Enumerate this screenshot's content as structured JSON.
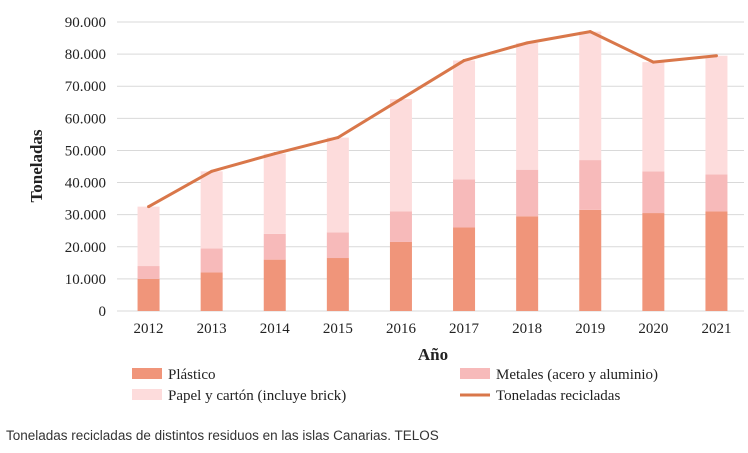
{
  "chart_data": {
    "type": "bar",
    "stacked": true,
    "categories": [
      "2012",
      "2013",
      "2014",
      "2015",
      "2016",
      "2017",
      "2018",
      "2019",
      "2020",
      "2021"
    ],
    "series": [
      {
        "name": "Plástico",
        "kind": "bar",
        "color": "#f0957a",
        "values": [
          10000,
          12000,
          16000,
          16500,
          21500,
          26000,
          29500,
          31500,
          30500,
          31000
        ]
      },
      {
        "name": "Metales (acero y aluminio)",
        "kind": "bar",
        "color": "#f7baba",
        "values": [
          4000,
          7500,
          8000,
          8000,
          9500,
          15000,
          14500,
          15500,
          13000,
          11500
        ]
      },
      {
        "name": "Papel y cartón (incluye brick)",
        "kind": "bar",
        "color": "#fddcdc",
        "values": [
          18500,
          24000,
          25000,
          29500,
          35000,
          37000,
          39500,
          40000,
          34000,
          37000
        ]
      },
      {
        "name": "Toneladas recicladas",
        "kind": "line",
        "color": "#d9774a",
        "values": [
          32500,
          43500,
          49000,
          54000,
          66000,
          78000,
          83500,
          87000,
          77500,
          79500
        ]
      }
    ],
    "ylabel": "Toneladas",
    "xlabel": "Año",
    "ylim": [
      0,
      90000
    ],
    "yticks": [
      0,
      10000,
      20000,
      30000,
      40000,
      50000,
      60000,
      70000,
      80000,
      90000
    ],
    "ytick_labels": [
      "0",
      "10.000",
      "20.000",
      "30.000",
      "40.000",
      "50.000",
      "60.000",
      "70.000",
      "80.000",
      "90.000"
    ],
    "grid": true,
    "legend_position": "bottom"
  },
  "caption": "Toneladas recicladas de distintos residuos en las islas Canarias. TELOS"
}
